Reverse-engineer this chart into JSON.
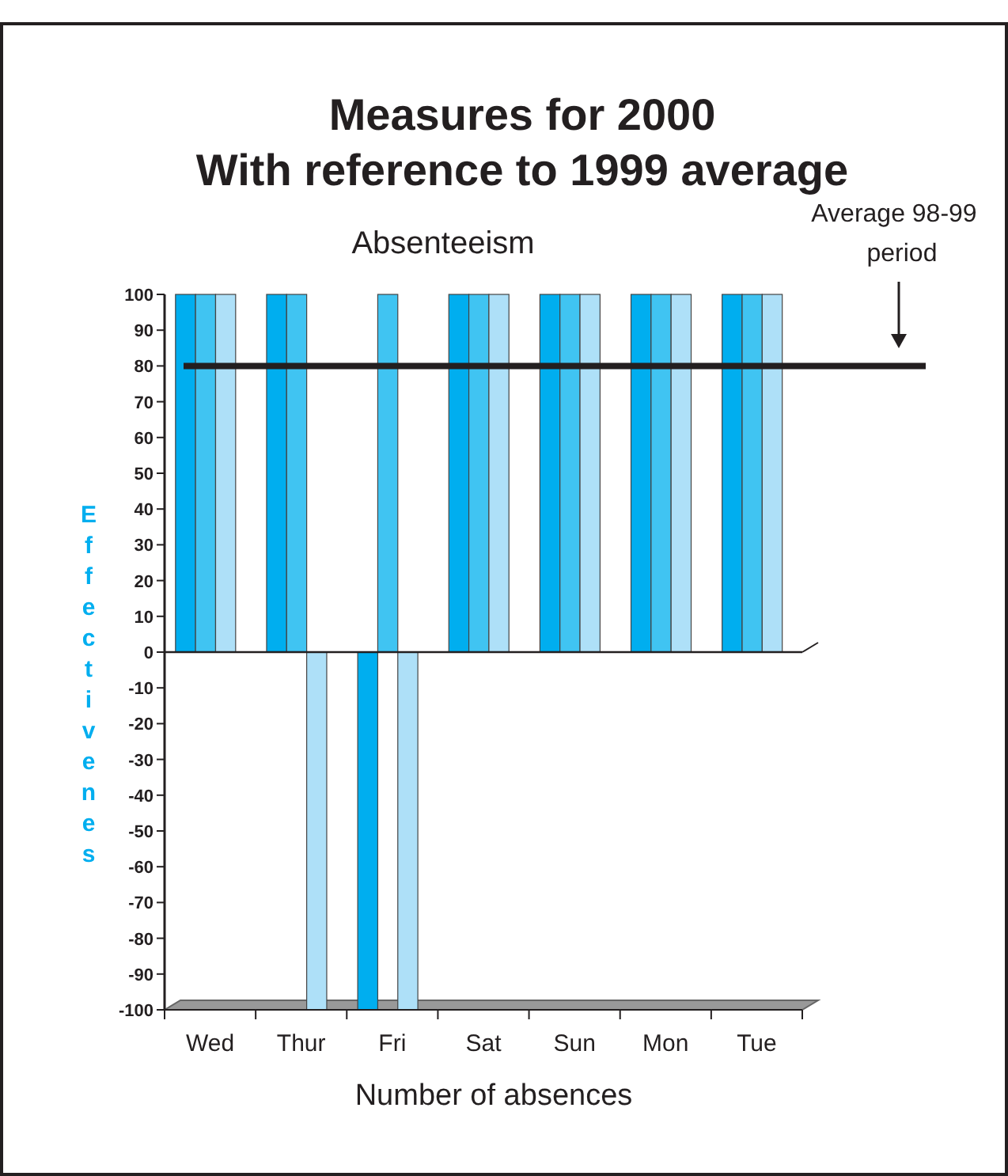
{
  "chart_data": {
    "type": "bar",
    "title": "Measures for 2000\nWith reference to 1999 average",
    "subtitle": "Absenteeism",
    "xlabel": "Number of absences",
    "ylabel": "Effectivenes",
    "categories": [
      "Wed",
      "Thur",
      "Fri",
      "Sat",
      "Sun",
      "Mon",
      "Tue"
    ],
    "series": [
      {
        "color": "#00aeef",
        "values": [
          100,
          100,
          -100,
          100,
          100,
          100,
          100
        ]
      },
      {
        "color": "#40c4f2",
        "values": [
          100,
          100,
          100,
          100,
          100,
          100,
          100
        ]
      },
      {
        "color": "#aee0f8",
        "values": [
          100,
          -100,
          -100,
          100,
          100,
          100,
          100
        ]
      }
    ],
    "ylim": [
      -100,
      100
    ],
    "yticks": [
      -100,
      -90,
      -80,
      -70,
      -60,
      -50,
      -40,
      -30,
      -20,
      -10,
      0,
      10,
      20,
      30,
      40,
      50,
      60,
      70,
      80,
      90,
      100
    ],
    "ref_lines": [
      {
        "axis": "y",
        "value": 80,
        "label": "Average 98-99\nperiod",
        "color": "#231f20"
      }
    ],
    "grid": false
  }
}
